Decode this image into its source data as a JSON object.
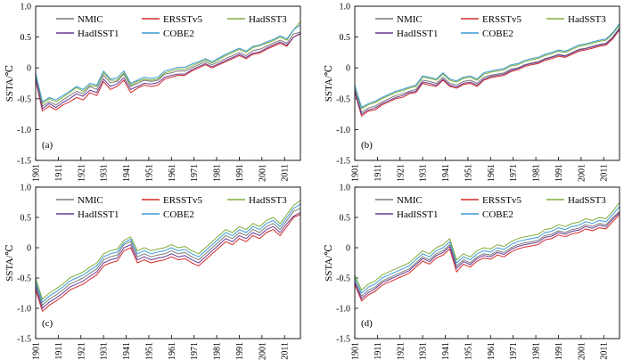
{
  "colors": {
    "NMIC": "#7a7a7a",
    "ERSSTv5": "#d42a2a",
    "HadSST3": "#7fae3a",
    "HadISST1": "#6a3a94",
    "COBE2": "#3a9ad4"
  },
  "chart_data": [
    {
      "type": "line",
      "label": "(a)",
      "ylabel": "SSTA/℃",
      "ylim": [
        -1.5,
        1.0
      ],
      "xlim": [
        1901,
        2018
      ],
      "yticks": [
        "1.0",
        "0.5",
        "0",
        "-0.5",
        "-1.0",
        "-1.5"
      ],
      "xticks": [
        "1901",
        "1911",
        "1921",
        "1931",
        "1941",
        "1951",
        "1961",
        "1971",
        "1981",
        "1991",
        "2001",
        "2011"
      ],
      "legend": [
        "NMIC",
        "ERSSTv5",
        "HadSST3",
        "HadISST1",
        "COBE2"
      ],
      "x_start": 1901,
      "x_step": 3,
      "series": [
        {
          "name": "NMIC",
          "values": [
            -0.12,
            -0.62,
            -0.55,
            -0.6,
            -0.52,
            -0.45,
            -0.38,
            -0.42,
            -0.3,
            -0.35,
            -0.12,
            -0.24,
            -0.22,
            -0.1,
            -0.3,
            -0.25,
            -0.2,
            -0.22,
            -0.2,
            -0.1,
            -0.08,
            -0.05,
            -0.05,
            0.0,
            0.05,
            0.1,
            0.05,
            0.1,
            0.15,
            0.2,
            0.25,
            0.2,
            0.28,
            0.3,
            0.35,
            0.4,
            0.45,
            0.4,
            0.55,
            0.58
          ]
        },
        {
          "name": "ERSSTv5",
          "values": [
            -0.2,
            -0.7,
            -0.62,
            -0.68,
            -0.6,
            -0.55,
            -0.48,
            -0.52,
            -0.4,
            -0.45,
            -0.22,
            -0.35,
            -0.3,
            -0.2,
            -0.4,
            -0.33,
            -0.28,
            -0.3,
            -0.28,
            -0.18,
            -0.15,
            -0.12,
            -0.12,
            -0.05,
            0.0,
            0.05,
            0.0,
            0.05,
            0.1,
            0.15,
            0.2,
            0.15,
            0.22,
            0.24,
            0.3,
            0.35,
            0.4,
            0.35,
            0.5,
            0.55
          ]
        },
        {
          "name": "HadSST3",
          "values": [
            -0.1,
            -0.58,
            -0.5,
            -0.55,
            -0.48,
            -0.4,
            -0.32,
            -0.38,
            -0.28,
            -0.3,
            -0.08,
            -0.2,
            -0.2,
            -0.08,
            -0.28,
            -0.22,
            -0.18,
            -0.2,
            -0.18,
            -0.08,
            -0.05,
            -0.02,
            -0.02,
            0.03,
            0.08,
            0.13,
            0.08,
            0.14,
            0.2,
            0.25,
            0.3,
            0.25,
            0.33,
            0.36,
            0.4,
            0.44,
            0.5,
            0.45,
            0.62,
            0.75
          ]
        },
        {
          "name": "HadISST1",
          "values": [
            -0.18,
            -0.66,
            -0.58,
            -0.64,
            -0.56,
            -0.5,
            -0.42,
            -0.46,
            -0.36,
            -0.4,
            -0.18,
            -0.3,
            -0.26,
            -0.16,
            -0.35,
            -0.3,
            -0.25,
            -0.26,
            -0.24,
            -0.15,
            -0.12,
            -0.1,
            -0.1,
            -0.03,
            0.02,
            0.07,
            0.02,
            0.07,
            0.12,
            0.17,
            0.22,
            0.17,
            0.24,
            0.26,
            0.32,
            0.37,
            0.42,
            0.37,
            0.5,
            0.56
          ]
        },
        {
          "name": "COBE2",
          "values": [
            -0.08,
            -0.55,
            -0.48,
            -0.52,
            -0.45,
            -0.38,
            -0.3,
            -0.35,
            -0.25,
            -0.28,
            -0.05,
            -0.18,
            -0.16,
            -0.05,
            -0.25,
            -0.2,
            -0.15,
            -0.17,
            -0.15,
            -0.05,
            -0.02,
            0.01,
            0.01,
            0.06,
            0.1,
            0.15,
            0.1,
            0.16,
            0.22,
            0.27,
            0.32,
            0.27,
            0.35,
            0.37,
            0.42,
            0.46,
            0.52,
            0.47,
            0.62,
            0.7
          ]
        }
      ]
    },
    {
      "type": "line",
      "label": "(b)",
      "ylabel": "SSTA/℃",
      "ylim": [
        -1.5,
        1.0
      ],
      "xlim": [
        1901,
        2018
      ],
      "yticks": [
        "1.0",
        "0.5",
        "0",
        "-0.5",
        "-1.0",
        "-1.5"
      ],
      "xticks": [
        "1901",
        "1911",
        "1921",
        "1931",
        "1941",
        "1951",
        "1961",
        "1971",
        "1981",
        "1991",
        "2001",
        "2011"
      ],
      "legend": [
        "NMIC",
        "ERSSTv5",
        "HadSST3",
        "HadISST1",
        "COBE2"
      ],
      "x_start": 1901,
      "x_step": 3,
      "series": [
        {
          "name": "NMIC",
          "values": [
            -0.35,
            -0.72,
            -0.65,
            -0.62,
            -0.55,
            -0.5,
            -0.45,
            -0.42,
            -0.38,
            -0.35,
            -0.2,
            -0.22,
            -0.25,
            -0.15,
            -0.25,
            -0.28,
            -0.22,
            -0.2,
            -0.25,
            -0.15,
            -0.12,
            -0.1,
            -0.08,
            -0.02,
            0.0,
            0.05,
            0.08,
            0.1,
            0.15,
            0.18,
            0.22,
            0.2,
            0.25,
            0.3,
            0.32,
            0.35,
            0.38,
            0.4,
            0.5,
            0.65
          ]
        },
        {
          "name": "ERSSTv5",
          "values": [
            -0.4,
            -0.78,
            -0.7,
            -0.68,
            -0.6,
            -0.55,
            -0.5,
            -0.48,
            -0.42,
            -0.4,
            -0.25,
            -0.28,
            -0.3,
            -0.2,
            -0.3,
            -0.33,
            -0.27,
            -0.25,
            -0.3,
            -0.2,
            -0.16,
            -0.14,
            -0.12,
            -0.06,
            -0.03,
            0.02,
            0.05,
            0.07,
            0.12,
            0.15,
            0.19,
            0.17,
            0.22,
            0.27,
            0.29,
            0.32,
            0.35,
            0.37,
            0.47,
            0.62
          ]
        },
        {
          "name": "HadSST3",
          "values": [
            -0.3,
            -0.66,
            -0.6,
            -0.56,
            -0.5,
            -0.45,
            -0.4,
            -0.37,
            -0.33,
            -0.3,
            -0.15,
            -0.17,
            -0.2,
            -0.1,
            -0.2,
            -0.23,
            -0.17,
            -0.15,
            -0.2,
            -0.1,
            -0.07,
            -0.05,
            -0.03,
            0.03,
            0.05,
            0.1,
            0.13,
            0.15,
            0.2,
            0.23,
            0.27,
            0.25,
            0.3,
            0.35,
            0.37,
            0.4,
            0.43,
            0.45,
            0.55,
            0.7
          ]
        },
        {
          "name": "HadISST1",
          "values": [
            -0.38,
            -0.75,
            -0.68,
            -0.65,
            -0.58,
            -0.53,
            -0.48,
            -0.45,
            -0.4,
            -0.38,
            -0.23,
            -0.25,
            -0.28,
            -0.18,
            -0.28,
            -0.31,
            -0.25,
            -0.23,
            -0.28,
            -0.18,
            -0.14,
            -0.12,
            -0.1,
            -0.04,
            -0.01,
            0.04,
            0.07,
            0.09,
            0.14,
            0.17,
            0.21,
            0.19,
            0.24,
            0.29,
            0.31,
            0.34,
            0.37,
            0.39,
            0.49,
            0.63
          ]
        },
        {
          "name": "COBE2",
          "values": [
            -0.28,
            -0.64,
            -0.58,
            -0.54,
            -0.48,
            -0.43,
            -0.38,
            -0.35,
            -0.31,
            -0.28,
            -0.13,
            -0.15,
            -0.18,
            -0.08,
            -0.18,
            -0.21,
            -0.15,
            -0.13,
            -0.18,
            -0.08,
            -0.05,
            -0.03,
            -0.01,
            0.05,
            0.07,
            0.12,
            0.15,
            0.17,
            0.22,
            0.25,
            0.29,
            0.27,
            0.32,
            0.37,
            0.39,
            0.42,
            0.45,
            0.47,
            0.57,
            0.72
          ]
        }
      ]
    },
    {
      "type": "line",
      "label": "(c)",
      "ylabel": "SSTA/℃",
      "ylim": [
        -1.5,
        1.0
      ],
      "xlim": [
        1901,
        2018
      ],
      "yticks": [
        "1.0",
        "0.5",
        "0",
        "-0.5",
        "-1.0",
        "-1.5"
      ],
      "xticks": [
        "1901",
        "1911",
        "1921",
        "1931",
        "1941",
        "1951",
        "1961",
        "1971",
        "1981",
        "1991",
        "2001",
        "2011"
      ],
      "legend": [
        "NMIC",
        "ERSSTv5",
        "HadSST3",
        "HadISST1",
        "COBE2"
      ],
      "x_start": 1901,
      "x_step": 3,
      "series": [
        {
          "name": "NMIC",
          "values": [
            -0.6,
            -0.95,
            -0.85,
            -0.78,
            -0.7,
            -0.6,
            -0.55,
            -0.5,
            -0.42,
            -0.35,
            -0.2,
            -0.15,
            -0.12,
            0.05,
            0.1,
            -0.15,
            -0.1,
            -0.15,
            -0.12,
            -0.1,
            -0.05,
            -0.1,
            -0.08,
            -0.15,
            -0.2,
            -0.1,
            0.0,
            0.1,
            0.2,
            0.15,
            0.25,
            0.2,
            0.3,
            0.25,
            0.35,
            0.4,
            0.3,
            0.45,
            0.6,
            0.65
          ]
        },
        {
          "name": "ERSSTv5",
          "values": [
            -0.7,
            -1.05,
            -0.95,
            -0.88,
            -0.8,
            -0.7,
            -0.65,
            -0.6,
            -0.52,
            -0.45,
            -0.3,
            -0.25,
            -0.22,
            -0.05,
            0.0,
            -0.25,
            -0.2,
            -0.25,
            -0.22,
            -0.2,
            -0.15,
            -0.2,
            -0.18,
            -0.25,
            -0.3,
            -0.2,
            -0.1,
            0.0,
            0.1,
            0.05,
            0.15,
            0.1,
            0.2,
            0.15,
            0.25,
            0.3,
            0.2,
            0.35,
            0.5,
            0.55
          ]
        },
        {
          "name": "HadSST3",
          "values": [
            -0.5,
            -0.85,
            -0.75,
            -0.68,
            -0.6,
            -0.5,
            -0.45,
            -0.4,
            -0.32,
            -0.25,
            -0.1,
            -0.05,
            -0.02,
            0.12,
            0.18,
            -0.05,
            0.0,
            -0.05,
            -0.02,
            0.0,
            0.05,
            0.0,
            0.02,
            -0.05,
            -0.1,
            0.0,
            0.1,
            0.2,
            0.3,
            0.25,
            0.35,
            0.3,
            0.4,
            0.35,
            0.45,
            0.5,
            0.4,
            0.55,
            0.7,
            0.78
          ]
        },
        {
          "name": "HadISST1",
          "values": [
            -0.65,
            -1.0,
            -0.9,
            -0.83,
            -0.75,
            -0.65,
            -0.6,
            -0.55,
            -0.47,
            -0.4,
            -0.25,
            -0.2,
            -0.17,
            0.0,
            0.05,
            -0.2,
            -0.15,
            -0.2,
            -0.17,
            -0.15,
            -0.1,
            -0.15,
            -0.13,
            -0.2,
            -0.25,
            -0.15,
            -0.05,
            0.05,
            0.15,
            0.1,
            0.2,
            0.15,
            0.25,
            0.2,
            0.3,
            0.35,
            0.25,
            0.4,
            0.52,
            0.58
          ]
        },
        {
          "name": "COBE2",
          "values": [
            -0.55,
            -0.9,
            -0.8,
            -0.73,
            -0.65,
            -0.55,
            -0.5,
            -0.45,
            -0.37,
            -0.3,
            -0.15,
            -0.1,
            -0.07,
            0.08,
            0.14,
            -0.1,
            -0.05,
            -0.1,
            -0.07,
            -0.05,
            0.0,
            -0.05,
            -0.03,
            -0.1,
            -0.15,
            -0.05,
            0.05,
            0.15,
            0.25,
            0.2,
            0.3,
            0.25,
            0.35,
            0.3,
            0.4,
            0.45,
            0.35,
            0.5,
            0.65,
            0.72
          ]
        }
      ]
    },
    {
      "type": "line",
      "label": "(d)",
      "ylabel": "SSTA/℃",
      "ylim": [
        -1.5,
        1.0
      ],
      "xlim": [
        1901,
        2018
      ],
      "yticks": [
        "1.0",
        "0.5",
        "0",
        "-0.5",
        "-1.0",
        "-1.5"
      ],
      "xticks": [
        "1901",
        "1911",
        "1921",
        "1931",
        "1941",
        "1951",
        "1961",
        "1971",
        "1981",
        "1991",
        "2001",
        "2011"
      ],
      "legend": [
        "NMIC",
        "ERSSTv5",
        "HadSST3",
        "HadISST1",
        "COBE2"
      ],
      "x_start": 1901,
      "x_step": 3,
      "series": [
        {
          "name": "NMIC",
          "values": [
            -0.55,
            -0.8,
            -0.7,
            -0.65,
            -0.55,
            -0.5,
            -0.45,
            -0.4,
            -0.35,
            -0.25,
            -0.15,
            -0.2,
            -0.1,
            -0.05,
            0.05,
            -0.3,
            -0.2,
            -0.25,
            -0.15,
            -0.1,
            -0.12,
            -0.05,
            -0.08,
            0.0,
            0.05,
            0.08,
            0.1,
            0.12,
            0.2,
            0.22,
            0.28,
            0.25,
            0.3,
            0.32,
            0.38,
            0.35,
            0.4,
            0.38,
            0.5,
            0.6
          ]
        },
        {
          "name": "ERSSTv5",
          "values": [
            -0.6,
            -0.88,
            -0.78,
            -0.72,
            -0.62,
            -0.57,
            -0.52,
            -0.47,
            -0.42,
            -0.32,
            -0.22,
            -0.27,
            -0.17,
            -0.12,
            -0.02,
            -0.4,
            -0.27,
            -0.32,
            -0.22,
            -0.17,
            -0.19,
            -0.12,
            -0.15,
            -0.07,
            -0.02,
            0.01,
            0.03,
            0.05,
            0.13,
            0.15,
            0.21,
            0.18,
            0.23,
            0.25,
            0.31,
            0.28,
            0.33,
            0.31,
            0.43,
            0.55
          ]
        },
        {
          "name": "HadSST3",
          "values": [
            -0.45,
            -0.7,
            -0.6,
            -0.55,
            -0.45,
            -0.4,
            -0.35,
            -0.3,
            -0.25,
            -0.15,
            -0.05,
            -0.1,
            0.0,
            0.05,
            0.15,
            -0.2,
            -0.1,
            -0.15,
            -0.05,
            0.0,
            -0.02,
            0.05,
            0.02,
            0.1,
            0.15,
            0.18,
            0.2,
            0.22,
            0.3,
            0.32,
            0.38,
            0.35,
            0.4,
            0.42,
            0.48,
            0.45,
            0.5,
            0.48,
            0.6,
            0.75
          ]
        },
        {
          "name": "HadISST1",
          "values": [
            -0.58,
            -0.84,
            -0.74,
            -0.68,
            -0.58,
            -0.53,
            -0.48,
            -0.43,
            -0.38,
            -0.28,
            -0.18,
            -0.23,
            -0.13,
            -0.08,
            0.02,
            -0.34,
            -0.23,
            -0.28,
            -0.18,
            -0.13,
            -0.15,
            -0.08,
            -0.11,
            -0.03,
            0.02,
            0.05,
            0.07,
            0.09,
            0.17,
            0.19,
            0.25,
            0.22,
            0.27,
            0.29,
            0.35,
            0.32,
            0.37,
            0.35,
            0.47,
            0.58
          ]
        },
        {
          "name": "COBE2",
          "values": [
            -0.5,
            -0.75,
            -0.65,
            -0.6,
            -0.5,
            -0.45,
            -0.4,
            -0.35,
            -0.3,
            -0.2,
            -0.1,
            -0.15,
            -0.05,
            0.0,
            0.1,
            -0.25,
            -0.15,
            -0.2,
            -0.1,
            -0.05,
            -0.07,
            0.0,
            -0.03,
            0.05,
            0.1,
            0.13,
            0.15,
            0.17,
            0.25,
            0.27,
            0.33,
            0.3,
            0.35,
            0.37,
            0.43,
            0.4,
            0.45,
            0.43,
            0.55,
            0.68
          ]
        }
      ]
    }
  ]
}
